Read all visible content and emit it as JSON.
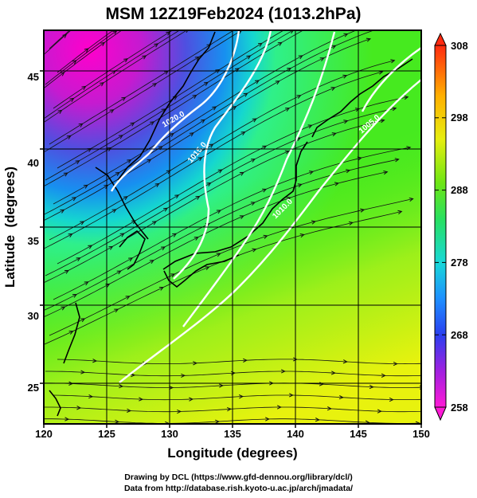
{
  "title": "MSM 12Z19Feb2024 (1013.2hPa)",
  "map": {
    "xlabel": "Longitude (degrees)",
    "ylabel": "Latitude  (degrees)",
    "x_ticks": [
      "120",
      "125",
      "130",
      "135",
      "140",
      "145",
      "150"
    ],
    "y_ticks": [
      "25",
      "30",
      "35",
      "40",
      "45"
    ],
    "lon_range": [
      120,
      150
    ],
    "lat_range": [
      22.4,
      47.6
    ],
    "contour_labels": [
      "1020.0",
      "1015.0",
      "1010.0",
      "1005.0"
    ],
    "colors": {
      "streamline": "#111111",
      "contour": "#ffffff",
      "coast": "#000000"
    }
  },
  "colorbar": {
    "labels": [
      "308",
      "298",
      "288",
      "278",
      "268",
      "258"
    ],
    "range": [
      258,
      308
    ]
  },
  "credits": {
    "line1": "Drawing by DCL (https://www.gfd-dennou.org/library/dcl/)",
    "line2": "Data from http://database.rish.kyoto-u.ac.jp/arch/jmadata/"
  }
}
